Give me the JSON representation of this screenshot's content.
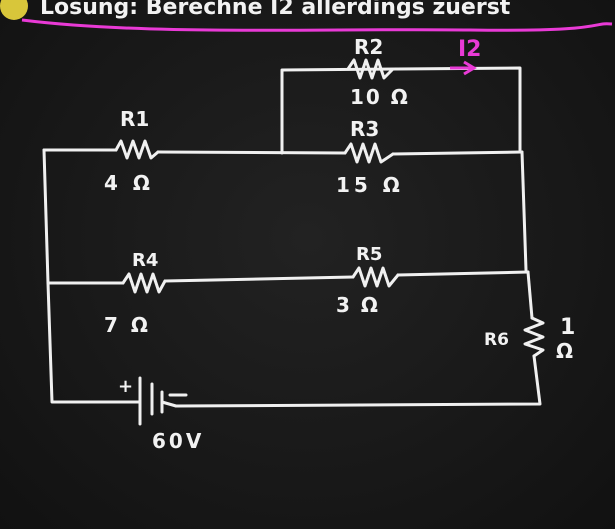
{
  "header": {
    "partial_text": "Lösung: Berechne I2 allerdings zuerst"
  },
  "circuit": {
    "resistors": [
      {
        "id": "R1",
        "label": "R1",
        "value": "4 Ω"
      },
      {
        "id": "R2",
        "label": "R2",
        "value": "10 Ω"
      },
      {
        "id": "R3",
        "label": "R3",
        "value": "15 Ω"
      },
      {
        "id": "R4",
        "label": "R4",
        "value": "7 Ω"
      },
      {
        "id": "R5",
        "label": "R5",
        "value": "3 Ω"
      },
      {
        "id": "R6",
        "label": "R6",
        "value_top": "1",
        "value_bottom": "Ω"
      }
    ],
    "source": {
      "value": "60V",
      "plus": "+",
      "minus": "−"
    },
    "current": {
      "label": "I2"
    }
  },
  "colors": {
    "chalk": "#f0f0f0",
    "accent": "#e93ad6",
    "board": "#1c1c1c"
  }
}
